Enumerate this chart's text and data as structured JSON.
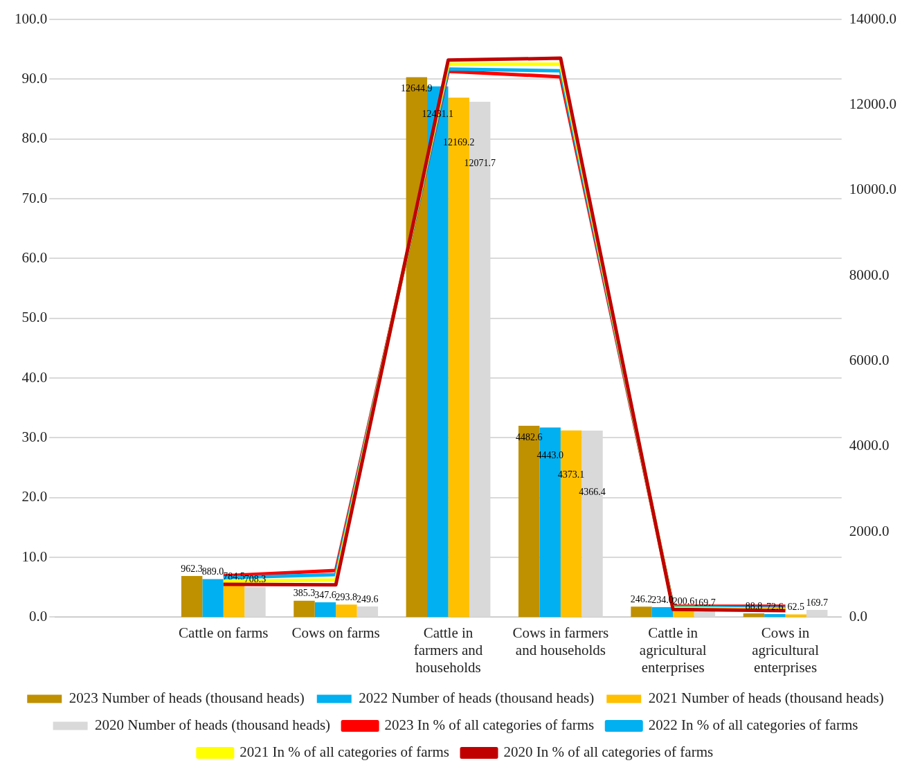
{
  "chart_data": {
    "type": "bar",
    "categories": [
      null,
      "Cattle on farms",
      "Cows on farms",
      "Cattle in farmers and households",
      "Cows in farmers and households",
      "Cattle in agricultural enterprises",
      "Cows in agricultural enterprises"
    ],
    "series": [
      {
        "name": "2023 Number of heads (thousand heads)",
        "axis": "y2",
        "color": "#bf9000",
        "values": [
          null,
          962.3,
          385.3,
          12644.9,
          4482.6,
          246.2,
          88.8
        ],
        "value_labels": [
          null,
          "962.3",
          "385.3",
          "12644.9",
          "4482.6",
          "246.2",
          "88.8"
        ]
      },
      {
        "name": "2022 Number of heads (thousand heads)",
        "axis": "y2",
        "color": "#00b0f0",
        "values": [
          null,
          889.0,
          347.6,
          12431.1,
          4443.0,
          234.0,
          72.6
        ],
        "value_labels": [
          null,
          "889.0",
          "347.6",
          "12431.1",
          "4443.0",
          "234.0",
          "72.6"
        ]
      },
      {
        "name": "2021 Number of heads (thousand heads)",
        "axis": "y2",
        "color": "#ffc000",
        "values": [
          null,
          784.5,
          293.8,
          12169.2,
          4373.1,
          200.6,
          62.5
        ],
        "value_labels": [
          null,
          "784.5",
          "293.8",
          "12169.2",
          "4373.1",
          "200.6",
          "62.5"
        ]
      },
      {
        "name": "2020 Number of heads (thousand heads)",
        "axis": "y2",
        "color": "#d9d9d9",
        "values": [
          null,
          708.3,
          249.6,
          12071.7,
          4366.4,
          169.7,
          169.7
        ],
        "value_labels": [
          null,
          "708.3",
          "249.6",
          "12071.7",
          "4366.4",
          "169.7",
          "169.7"
        ]
      },
      {
        "name": "2023 In % of all categories of farms",
        "type": "line",
        "color": "#ff0000",
        "values": [
          null,
          6.9,
          7.8,
          91.3,
          90.4,
          1.8,
          1.8
        ]
      },
      {
        "name": "2022 In % of all categories of farms",
        "type": "line",
        "color": "#00b0f0",
        "values": [
          null,
          6.6,
          7.1,
          91.7,
          91.4,
          1.7,
          1.5
        ]
      },
      {
        "name": "2021 In % of all categories of farms",
        "type": "line",
        "color": "#ffff00",
        "values": [
          null,
          6.0,
          6.2,
          92.5,
          92.5,
          1.5,
          1.3
        ]
      },
      {
        "name": "2020 In % of all categories of farms",
        "type": "line",
        "color": "#c00000",
        "values": [
          null,
          5.5,
          5.4,
          93.2,
          93.5,
          1.3,
          1.1
        ]
      }
    ],
    "ylim": [
      0,
      100
    ],
    "yticks": [
      {
        "value": 0,
        "label": "0.0"
      },
      {
        "value": 10,
        "label": "10.0"
      },
      {
        "value": 20,
        "label": "20.0"
      },
      {
        "value": 30,
        "label": "30.0"
      },
      {
        "value": 40,
        "label": "40.0"
      },
      {
        "value": 50,
        "label": "50.0"
      },
      {
        "value": 60,
        "label": "60.0"
      },
      {
        "value": 70,
        "label": "70.0"
      },
      {
        "value": 80,
        "label": "80.0"
      },
      {
        "value": 90,
        "label": "90.0"
      },
      {
        "value": 100,
        "label": "100.0"
      }
    ],
    "y2lim": [
      0,
      14000
    ],
    "y2ticks": [
      {
        "value": 0,
        "label": "0.0"
      },
      {
        "value": 2000,
        "label": "2000.0"
      },
      {
        "value": 4000,
        "label": "4000.0"
      },
      {
        "value": 6000,
        "label": "6000.0"
      },
      {
        "value": 8000,
        "label": "8000.0"
      },
      {
        "value": 10000,
        "label": "10000.0"
      },
      {
        "value": 12000,
        "label": "12000.0"
      },
      {
        "value": 14000,
        "label": "14000.0"
      }
    ],
    "grid": "y",
    "legend": "bottom"
  }
}
